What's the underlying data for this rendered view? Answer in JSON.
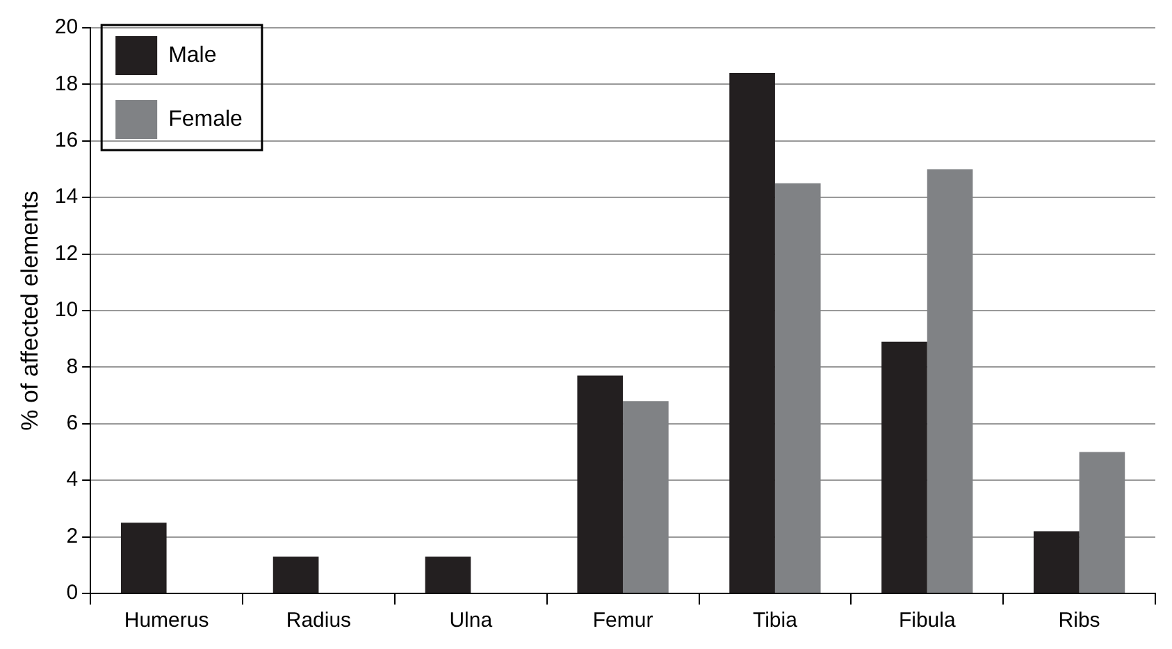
{
  "chart_data": {
    "type": "bar",
    "ylabel": "% of affected elements",
    "categories": [
      "Humerus",
      "Radius",
      "Ulna",
      "Femur",
      "Tibia",
      "Fibula",
      "Ribs"
    ],
    "series": [
      {
        "name": "Male",
        "color": "#231f20",
        "values": [
          2.5,
          1.3,
          1.3,
          7.7,
          18.4,
          8.9,
          2.2
        ]
      },
      {
        "name": "Female",
        "color": "#808285",
        "values": [
          0,
          0,
          0,
          6.8,
          14.5,
          15.0,
          5.0
        ]
      }
    ],
    "ylim": [
      0,
      20
    ],
    "yticks": [
      0,
      2,
      4,
      6,
      8,
      10,
      12,
      14,
      16,
      18,
      20
    ],
    "grid": "y",
    "legend": "top left"
  }
}
